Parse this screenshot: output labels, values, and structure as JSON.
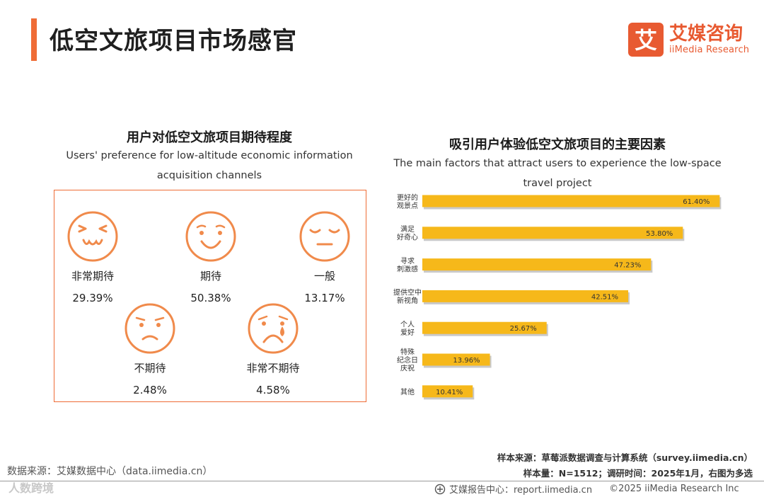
{
  "page": {
    "title": "低空文旅项目市场感官",
    "logo_cn": "艾媒咨询",
    "logo_en": "iiMedia Research",
    "logo_mark": "艾"
  },
  "left": {
    "title": "用户对低空文旅项目期待程度",
    "subtitle_line1": "Users' preference for low-altitude economic information",
    "subtitle_line2": "acquisition channels",
    "faces": [
      {
        "label": "非常期待",
        "value": "29.39%",
        "icon": "very-excited-face-icon"
      },
      {
        "label": "期待",
        "value": "50.38%",
        "icon": "smiling-face-icon"
      },
      {
        "label": "一般",
        "value": "13.17%",
        "icon": "neutral-face-icon"
      },
      {
        "label": "不期待",
        "value": "2.48%",
        "icon": "sad-face-icon"
      },
      {
        "label": "非常不期待",
        "value": "4.58%",
        "icon": "crying-face-icon"
      }
    ]
  },
  "right": {
    "title": "吸引用户体验低空文旅项目的主要因素",
    "subtitle_line1": "The main factors that attract users to experience the low-space",
    "subtitle_line2": "travel project"
  },
  "chart_data": {
    "type": "bar",
    "orientation": "horizontal",
    "title": "吸引用户体验低空文旅项目的主要因素",
    "categories": [
      [
        "更好的",
        "观景点"
      ],
      [
        "满足",
        "好奇心"
      ],
      [
        "寻求",
        "刺激感"
      ],
      [
        "提供空中",
        "新视角"
      ],
      [
        "个人",
        "爱好"
      ],
      [
        "特殊",
        "纪念日",
        "庆祝"
      ],
      [
        "其他"
      ]
    ],
    "values": [
      61.4,
      53.8,
      47.23,
      42.51,
      25.67,
      13.96,
      10.41
    ],
    "value_labels": [
      "61.40%",
      "53.80%",
      "47.23%",
      "42.51%",
      "25.67%",
      "13.96%",
      "10.41%"
    ],
    "unit": "%",
    "xlim": [
      0,
      65
    ],
    "bar_color": "#f6b81a",
    "shadow_color": "#c9c9c9"
  },
  "notes": {
    "sample_source": "样本来源：草莓派数据调查与计算系统（survey.iimedia.cn）",
    "sample_info": "样本量：N=1512；调研时间：2025年1月，右图为多选"
  },
  "source": "数据来源：艾媒数据中心（data.iimedia.cn）",
  "watermark": "人数跨境",
  "footer": {
    "report": "艾媒报告中心：report.iimedia.cn",
    "copyright": "©2025  iiMedia Research Inc"
  },
  "colors": {
    "accent": "#ef6c36",
    "brand": "#e85a31",
    "face": "#f08a4b",
    "bar": "#f6b81a"
  }
}
